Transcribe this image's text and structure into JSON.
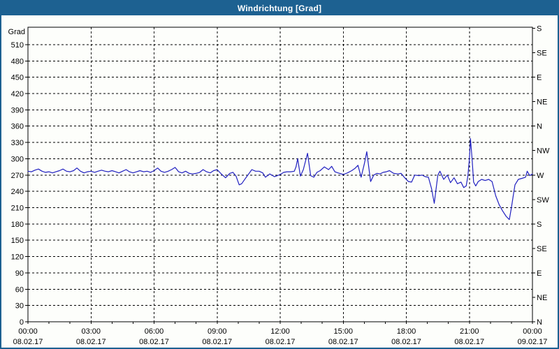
{
  "window": {
    "title": "Windrichtung [Grad]"
  },
  "colors": {
    "titlebar_bg": "#1d6191",
    "titlebar_text": "#ffffff",
    "window_border": "#1d6191",
    "plot_bg": "#fdfefb",
    "line": "#2020c0",
    "grid": "#000000",
    "text": "#000000"
  },
  "chart_data": {
    "type": "line",
    "title": "Windrichtung [Grad]",
    "y_axis_title": "Grad",
    "grid": true,
    "ylim": [
      0,
      542
    ],
    "xlim_hours": [
      0,
      24
    ],
    "y_left_ticks": [
      0,
      30,
      60,
      90,
      120,
      150,
      180,
      210,
      240,
      270,
      300,
      330,
      360,
      390,
      420,
      450,
      480,
      510
    ],
    "y_right_ticks": [
      {
        "value": 0,
        "label": "N"
      },
      {
        "value": 45,
        "label": "NE"
      },
      {
        "value": 90,
        "label": "E"
      },
      {
        "value": 135,
        "label": "SE"
      },
      {
        "value": 180,
        "label": "S"
      },
      {
        "value": 225,
        "label": "SW"
      },
      {
        "value": 270,
        "label": "W"
      },
      {
        "value": 315,
        "label": "NW"
      },
      {
        "value": 360,
        "label": "N"
      },
      {
        "value": 405,
        "label": "NE"
      },
      {
        "value": 450,
        "label": "E"
      },
      {
        "value": 495,
        "label": "SE"
      },
      {
        "value": 540,
        "label": "S"
      }
    ],
    "x_ticks": [
      {
        "hour": 0,
        "time": "00:00",
        "date": "08.02.17"
      },
      {
        "hour": 3,
        "time": "03:00",
        "date": "08.02.17"
      },
      {
        "hour": 6,
        "time": "06:00",
        "date": "08.02.17"
      },
      {
        "hour": 9,
        "time": "09:00",
        "date": "08.02.17"
      },
      {
        "hour": 12,
        "time": "12:00",
        "date": "08.02.17"
      },
      {
        "hour": 15,
        "time": "15:00",
        "date": "08.02.17"
      },
      {
        "hour": 18,
        "time": "18:00",
        "date": "08.02.17"
      },
      {
        "hour": 21,
        "time": "21:00",
        "date": "08.02.17"
      },
      {
        "hour": 24,
        "time": "00:00",
        "date": "09.02.17"
      }
    ],
    "series": [
      {
        "name": "Windrichtung",
        "color": "#2020c0",
        "points": [
          [
            0,
            277
          ],
          [
            0.17,
            276
          ],
          [
            0.33,
            279
          ],
          [
            0.5,
            281
          ],
          [
            0.67,
            277
          ],
          [
            0.83,
            275
          ],
          [
            1,
            276
          ],
          [
            1.17,
            274
          ],
          [
            1.33,
            276
          ],
          [
            1.5,
            278
          ],
          [
            1.67,
            281
          ],
          [
            1.83,
            277
          ],
          [
            2,
            276
          ],
          [
            2.17,
            278
          ],
          [
            2.33,
            283
          ],
          [
            2.5,
            277
          ],
          [
            2.67,
            274
          ],
          [
            2.83,
            276
          ],
          [
            3,
            277
          ],
          [
            3.17,
            275
          ],
          [
            3.33,
            277
          ],
          [
            3.5,
            279
          ],
          [
            3.67,
            277
          ],
          [
            3.83,
            276
          ],
          [
            4,
            278
          ],
          [
            4.17,
            276
          ],
          [
            4.33,
            274
          ],
          [
            4.5,
            277
          ],
          [
            4.67,
            280
          ],
          [
            4.83,
            276
          ],
          [
            5,
            274
          ],
          [
            5.17,
            276
          ],
          [
            5.33,
            278
          ],
          [
            5.5,
            276
          ],
          [
            5.67,
            277
          ],
          [
            5.83,
            275
          ],
          [
            6,
            278
          ],
          [
            6.17,
            283
          ],
          [
            6.33,
            277
          ],
          [
            6.5,
            275
          ],
          [
            6.67,
            277
          ],
          [
            6.83,
            280
          ],
          [
            7,
            284
          ],
          [
            7.17,
            276
          ],
          [
            7.33,
            274
          ],
          [
            7.5,
            277
          ],
          [
            7.67,
            273
          ],
          [
            7.83,
            272
          ],
          [
            8,
            273
          ],
          [
            8.17,
            275
          ],
          [
            8.33,
            280
          ],
          [
            8.5,
            276
          ],
          [
            8.67,
            274
          ],
          [
            8.83,
            278
          ],
          [
            9,
            280
          ],
          [
            9.17,
            273
          ],
          [
            9.4,
            265
          ],
          [
            9.6,
            273
          ],
          [
            9.75,
            275
          ],
          [
            9.9,
            268
          ],
          [
            10.05,
            252
          ],
          [
            10.17,
            254
          ],
          [
            10.33,
            263
          ],
          [
            10.5,
            272
          ],
          [
            10.65,
            280
          ],
          [
            10.83,
            277
          ],
          [
            11,
            277
          ],
          [
            11.17,
            274
          ],
          [
            11.3,
            266
          ],
          [
            11.5,
            272
          ],
          [
            11.73,
            267
          ],
          [
            11.87,
            269
          ],
          [
            12,
            271
          ],
          [
            12.17,
            275
          ],
          [
            12.33,
            276
          ],
          [
            12.5,
            276
          ],
          [
            12.67,
            277
          ],
          [
            12.75,
            285
          ],
          [
            12.83,
            300
          ],
          [
            12.96,
            268
          ],
          [
            13.1,
            280
          ],
          [
            13.3,
            310
          ],
          [
            13.45,
            269
          ],
          [
            13.6,
            266
          ],
          [
            13.75,
            275
          ],
          [
            13.9,
            278
          ],
          [
            14.1,
            285
          ],
          [
            14.3,
            280
          ],
          [
            14.45,
            286
          ],
          [
            14.6,
            276
          ],
          [
            14.75,
            274
          ],
          [
            15,
            271
          ],
          [
            15.2,
            274
          ],
          [
            15.4,
            278
          ],
          [
            15.55,
            282
          ],
          [
            15.7,
            288
          ],
          [
            15.85,
            266
          ],
          [
            16,
            290
          ],
          [
            16.12,
            313
          ],
          [
            16.3,
            258
          ],
          [
            16.45,
            270
          ],
          [
            16.6,
            273
          ],
          [
            16.75,
            272
          ],
          [
            16.9,
            275
          ],
          [
            17.05,
            276
          ],
          [
            17.2,
            278
          ],
          [
            17.4,
            273
          ],
          [
            17.6,
            272
          ],
          [
            17.75,
            273
          ],
          [
            17.9,
            266
          ],
          [
            18.1,
            258
          ],
          [
            18.25,
            257
          ],
          [
            18.4,
            270
          ],
          [
            18.6,
            269
          ],
          [
            18.75,
            270
          ],
          [
            18.9,
            267
          ],
          [
            19.05,
            266
          ],
          [
            19.2,
            245
          ],
          [
            19.33,
            218
          ],
          [
            19.5,
            270
          ],
          [
            19.6,
            277
          ],
          [
            19.78,
            262
          ],
          [
            19.95,
            270
          ],
          [
            20.1,
            256
          ],
          [
            20.27,
            265
          ],
          [
            20.43,
            254
          ],
          [
            20.6,
            257
          ],
          [
            20.73,
            247
          ],
          [
            20.85,
            250
          ],
          [
            20.93,
            268
          ],
          [
            21,
            300
          ],
          [
            21.05,
            337
          ],
          [
            21.13,
            298
          ],
          [
            21.2,
            257
          ],
          [
            21.3,
            250
          ],
          [
            21.42,
            258
          ],
          [
            21.58,
            262
          ],
          [
            21.75,
            260
          ],
          [
            21.92,
            262
          ],
          [
            22.08,
            258
          ],
          [
            22.25,
            232
          ],
          [
            22.42,
            215
          ],
          [
            22.58,
            204
          ],
          [
            22.75,
            194
          ],
          [
            22.9,
            188
          ],
          [
            23,
            210
          ],
          [
            23.08,
            230
          ],
          [
            23.17,
            252
          ],
          [
            23.33,
            262
          ],
          [
            23.5,
            264
          ],
          [
            23.67,
            266
          ],
          [
            23.75,
            277
          ],
          [
            23.87,
            269
          ],
          [
            24,
            272
          ]
        ]
      }
    ]
  }
}
